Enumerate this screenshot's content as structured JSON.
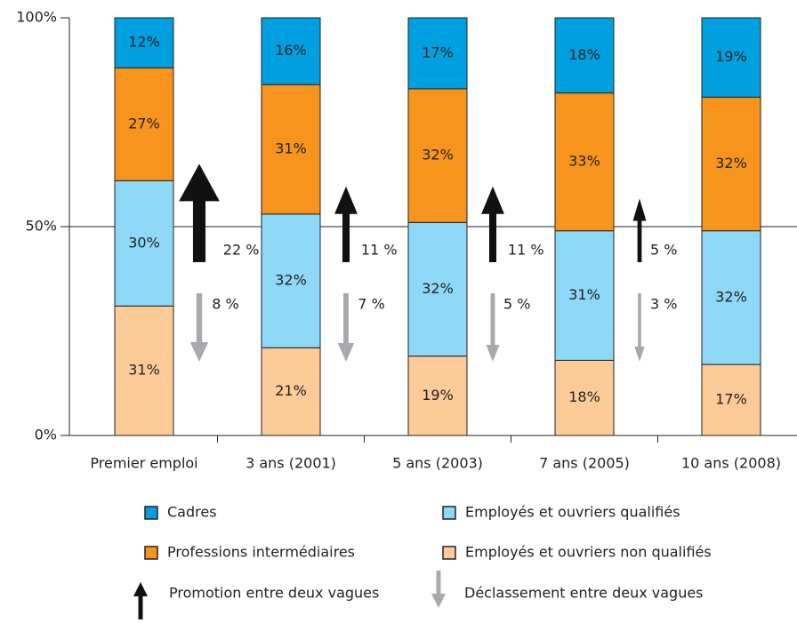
{
  "chart_data": {
    "type": "stacked_bar",
    "categories": [
      "Premier emploi",
      "3 ans (2001)",
      "5 ans (2003)",
      "7 ans (2005)",
      "10 ans (2008)"
    ],
    "series": [
      {
        "name": "Employés et ouvriers non qualifiés",
        "color": "#fccb98",
        "values": [
          31,
          21,
          19,
          18,
          17
        ],
        "value_labels": [
          "31%",
          "21%",
          "19%",
          "18%",
          "17%"
        ]
      },
      {
        "name": "Employés et ouvriers qualifiés",
        "color": "#8ed8f8",
        "values": [
          30,
          32,
          32,
          31,
          32
        ],
        "value_labels": [
          "30%",
          "32%",
          "32%",
          "31%",
          "32%"
        ]
      },
      {
        "name": "Professions intermédiaires",
        "color": "#f7941d",
        "values": [
          27,
          31,
          32,
          33,
          32
        ],
        "value_labels": [
          "27%",
          "31%",
          "32%",
          "33%",
          "32%"
        ]
      },
      {
        "name": "Cadres",
        "color": "#00a0e0",
        "values": [
          12,
          16,
          17,
          18,
          19
        ],
        "value_labels": [
          "12%",
          "16%",
          "17%",
          "18%",
          "19%"
        ]
      }
    ],
    "arrows": [
      {
        "name": "Promotion entre deux vagues",
        "direction": "up",
        "color": "#111111",
        "values": [
          22,
          11,
          11,
          5
        ],
        "value_labels": [
          "22 %",
          "11 %",
          "11 %",
          "5 %"
        ]
      },
      {
        "name": "Déclassement entre deux vagues",
        "direction": "down",
        "color": "#a7a9ac",
        "values": [
          8,
          7,
          5,
          3
        ],
        "value_labels": [
          "8 %",
          "7 %",
          "5 %",
          "3 %"
        ]
      }
    ],
    "ylim": [
      0,
      100
    ],
    "yticks": [
      {
        "value": 0,
        "label": "0%"
      },
      {
        "value": 50,
        "label": "50%"
      },
      {
        "value": 100,
        "label": "100%"
      }
    ],
    "grid": true
  }
}
